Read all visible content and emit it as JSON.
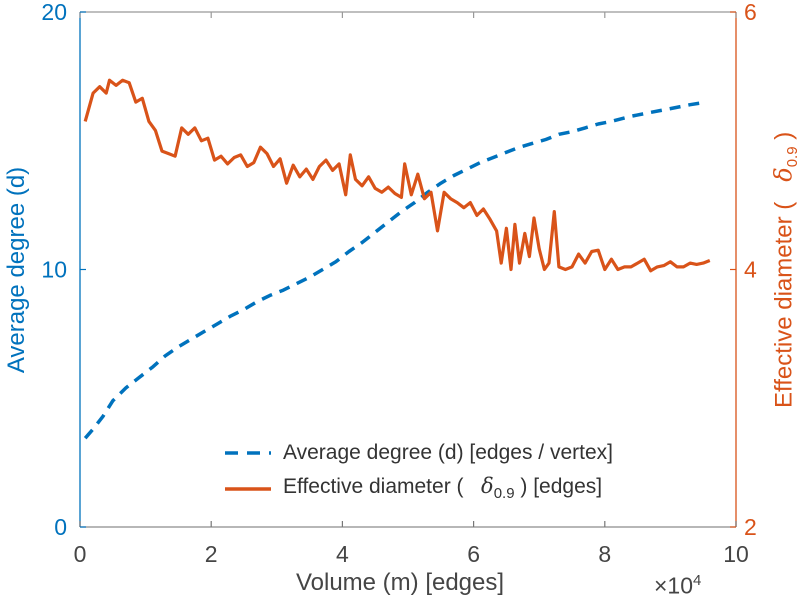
{
  "window": {
    "background": "#ffffff"
  },
  "colors": {
    "left_series": "#0072BD",
    "right_series": "#D95319",
    "axis_box": "#999999",
    "x_tick_color": "#777777",
    "tick_label": "#454545"
  },
  "labels": {
    "left_ylabel": "Average degree (d)",
    "right_ylabel_prefix": "Effective diameter (   ",
    "right_ylabel_delta": "δ",
    "right_ylabel_delta_sub": "0.9",
    "right_ylabel_suffix": " )",
    "xlabel": "Volume (m) [edges]",
    "x_multiplier_base": "×10",
    "x_multiplier_exp": "4"
  },
  "legend": {
    "items": [
      {
        "label": "Average degree (d) [edges / vertex]"
      },
      {
        "label_prefix": "Effective diameter (   ",
        "delta": "δ",
        "delta_sub": "0.9",
        "label_suffix": " ) [edges]"
      }
    ]
  },
  "chart_data": {
    "type": "line",
    "title": "",
    "xlabel": "Volume (m) [edges]",
    "x_scale_multiplier": "1e4",
    "xlim": [
      0,
      10
    ],
    "x_ticks": [
      0,
      2,
      4,
      6,
      8,
      10
    ],
    "grid": false,
    "legend_position": "inside-south",
    "left_axis": {
      "ylabel": "Average degree (d)",
      "ylim": [
        0,
        20
      ],
      "ticks": [
        0,
        10,
        20
      ],
      "color": "#0072BD"
    },
    "right_axis": {
      "ylabel": "Effective diameter ( δ_0.9 )",
      "ylim": [
        2,
        6
      ],
      "ticks": [
        2,
        4,
        6
      ],
      "color": "#D95319"
    },
    "series": [
      {
        "name": "Average degree (d) [edges / vertex]",
        "axis": "left",
        "style": "dashed",
        "color": "#0072BD",
        "points": [
          [
            0.08,
            3.45
          ],
          [
            0.2,
            3.8
          ],
          [
            0.35,
            4.3
          ],
          [
            0.5,
            4.9
          ],
          [
            0.7,
            5.4
          ],
          [
            0.9,
            5.8
          ],
          [
            1.1,
            6.2
          ],
          [
            1.3,
            6.65
          ],
          [
            1.5,
            7.0
          ],
          [
            1.7,
            7.3
          ],
          [
            1.9,
            7.6
          ],
          [
            2.1,
            7.9
          ],
          [
            2.3,
            8.2
          ],
          [
            2.5,
            8.45
          ],
          [
            2.7,
            8.75
          ],
          [
            2.9,
            9.0
          ],
          [
            3.1,
            9.2
          ],
          [
            3.3,
            9.45
          ],
          [
            3.5,
            9.7
          ],
          [
            3.7,
            10.0
          ],
          [
            3.9,
            10.3
          ],
          [
            4.1,
            10.7
          ],
          [
            4.3,
            11.05
          ],
          [
            4.5,
            11.45
          ],
          [
            4.7,
            11.85
          ],
          [
            4.9,
            12.25
          ],
          [
            5.1,
            12.6
          ],
          [
            5.3,
            13.0
          ],
          [
            5.5,
            13.35
          ],
          [
            5.7,
            13.65
          ],
          [
            5.9,
            13.9
          ],
          [
            6.1,
            14.15
          ],
          [
            6.3,
            14.35
          ],
          [
            6.5,
            14.55
          ],
          [
            6.7,
            14.75
          ],
          [
            6.9,
            14.9
          ],
          [
            7.1,
            15.05
          ],
          [
            7.3,
            15.25
          ],
          [
            7.5,
            15.35
          ],
          [
            7.7,
            15.5
          ],
          [
            7.9,
            15.65
          ],
          [
            8.1,
            15.75
          ],
          [
            8.4,
            15.95
          ],
          [
            8.7,
            16.1
          ],
          [
            9.0,
            16.25
          ],
          [
            9.3,
            16.4
          ],
          [
            9.55,
            16.5
          ]
        ]
      },
      {
        "name": "Effective diameter ( δ_0.9 ) [edges]",
        "axis": "right",
        "style": "solid",
        "color": "#D95319",
        "points": [
          [
            0.08,
            5.15
          ],
          [
            0.2,
            5.37
          ],
          [
            0.3,
            5.42
          ],
          [
            0.4,
            5.37
          ],
          [
            0.45,
            5.47
          ],
          [
            0.55,
            5.43
          ],
          [
            0.65,
            5.47
          ],
          [
            0.75,
            5.45
          ],
          [
            0.85,
            5.3
          ],
          [
            0.95,
            5.33
          ],
          [
            1.05,
            5.15
          ],
          [
            1.15,
            5.08
          ],
          [
            1.25,
            4.92
          ],
          [
            1.35,
            4.9
          ],
          [
            1.45,
            4.88
          ],
          [
            1.55,
            5.1
          ],
          [
            1.65,
            5.05
          ],
          [
            1.75,
            5.1
          ],
          [
            1.85,
            5.0
          ],
          [
            1.95,
            5.02
          ],
          [
            2.05,
            4.85
          ],
          [
            2.15,
            4.88
          ],
          [
            2.25,
            4.82
          ],
          [
            2.35,
            4.87
          ],
          [
            2.45,
            4.89
          ],
          [
            2.55,
            4.8
          ],
          [
            2.65,
            4.83
          ],
          [
            2.75,
            4.95
          ],
          [
            2.85,
            4.9
          ],
          [
            2.95,
            4.8
          ],
          [
            3.05,
            4.86
          ],
          [
            3.15,
            4.67
          ],
          [
            3.25,
            4.81
          ],
          [
            3.35,
            4.72
          ],
          [
            3.45,
            4.78
          ],
          [
            3.55,
            4.7
          ],
          [
            3.65,
            4.8
          ],
          [
            3.75,
            4.85
          ],
          [
            3.85,
            4.77
          ],
          [
            3.95,
            4.82
          ],
          [
            4.05,
            4.58
          ],
          [
            4.12,
            4.89
          ],
          [
            4.2,
            4.7
          ],
          [
            4.3,
            4.65
          ],
          [
            4.4,
            4.72
          ],
          [
            4.5,
            4.63
          ],
          [
            4.6,
            4.6
          ],
          [
            4.7,
            4.64
          ],
          [
            4.8,
            4.59
          ],
          [
            4.9,
            4.56
          ],
          [
            4.95,
            4.82
          ],
          [
            5.05,
            4.58
          ],
          [
            5.15,
            4.74
          ],
          [
            5.25,
            4.55
          ],
          [
            5.35,
            4.6
          ],
          [
            5.45,
            4.3
          ],
          [
            5.55,
            4.6
          ],
          [
            5.65,
            4.55
          ],
          [
            5.75,
            4.52
          ],
          [
            5.85,
            4.48
          ],
          [
            5.95,
            4.52
          ],
          [
            6.05,
            4.42
          ],
          [
            6.15,
            4.47
          ],
          [
            6.25,
            4.39
          ],
          [
            6.35,
            4.3
          ],
          [
            6.42,
            4.05
          ],
          [
            6.5,
            4.32
          ],
          [
            6.57,
            4.0
          ],
          [
            6.63,
            4.35
          ],
          [
            6.7,
            4.05
          ],
          [
            6.78,
            4.28
          ],
          [
            6.85,
            4.1
          ],
          [
            6.92,
            4.4
          ],
          [
            7.0,
            4.16
          ],
          [
            7.08,
            4.0
          ],
          [
            7.15,
            4.05
          ],
          [
            7.23,
            4.45
          ],
          [
            7.3,
            4.02
          ],
          [
            7.4,
            4.0
          ],
          [
            7.5,
            4.02
          ],
          [
            7.6,
            4.12
          ],
          [
            7.7,
            4.05
          ],
          [
            7.8,
            4.14
          ],
          [
            7.9,
            4.15
          ],
          [
            8.0,
            4.0
          ],
          [
            8.1,
            4.08
          ],
          [
            8.2,
            4.0
          ],
          [
            8.3,
            4.02
          ],
          [
            8.4,
            4.02
          ],
          [
            8.5,
            4.05
          ],
          [
            8.6,
            4.08
          ],
          [
            8.7,
            3.99
          ],
          [
            8.8,
            4.02
          ],
          [
            8.9,
            4.03
          ],
          [
            9.0,
            4.06
          ],
          [
            9.1,
            4.02
          ],
          [
            9.2,
            4.02
          ],
          [
            9.3,
            4.05
          ],
          [
            9.4,
            4.04
          ],
          [
            9.5,
            4.05
          ],
          [
            9.6,
            4.07
          ]
        ]
      }
    ]
  }
}
